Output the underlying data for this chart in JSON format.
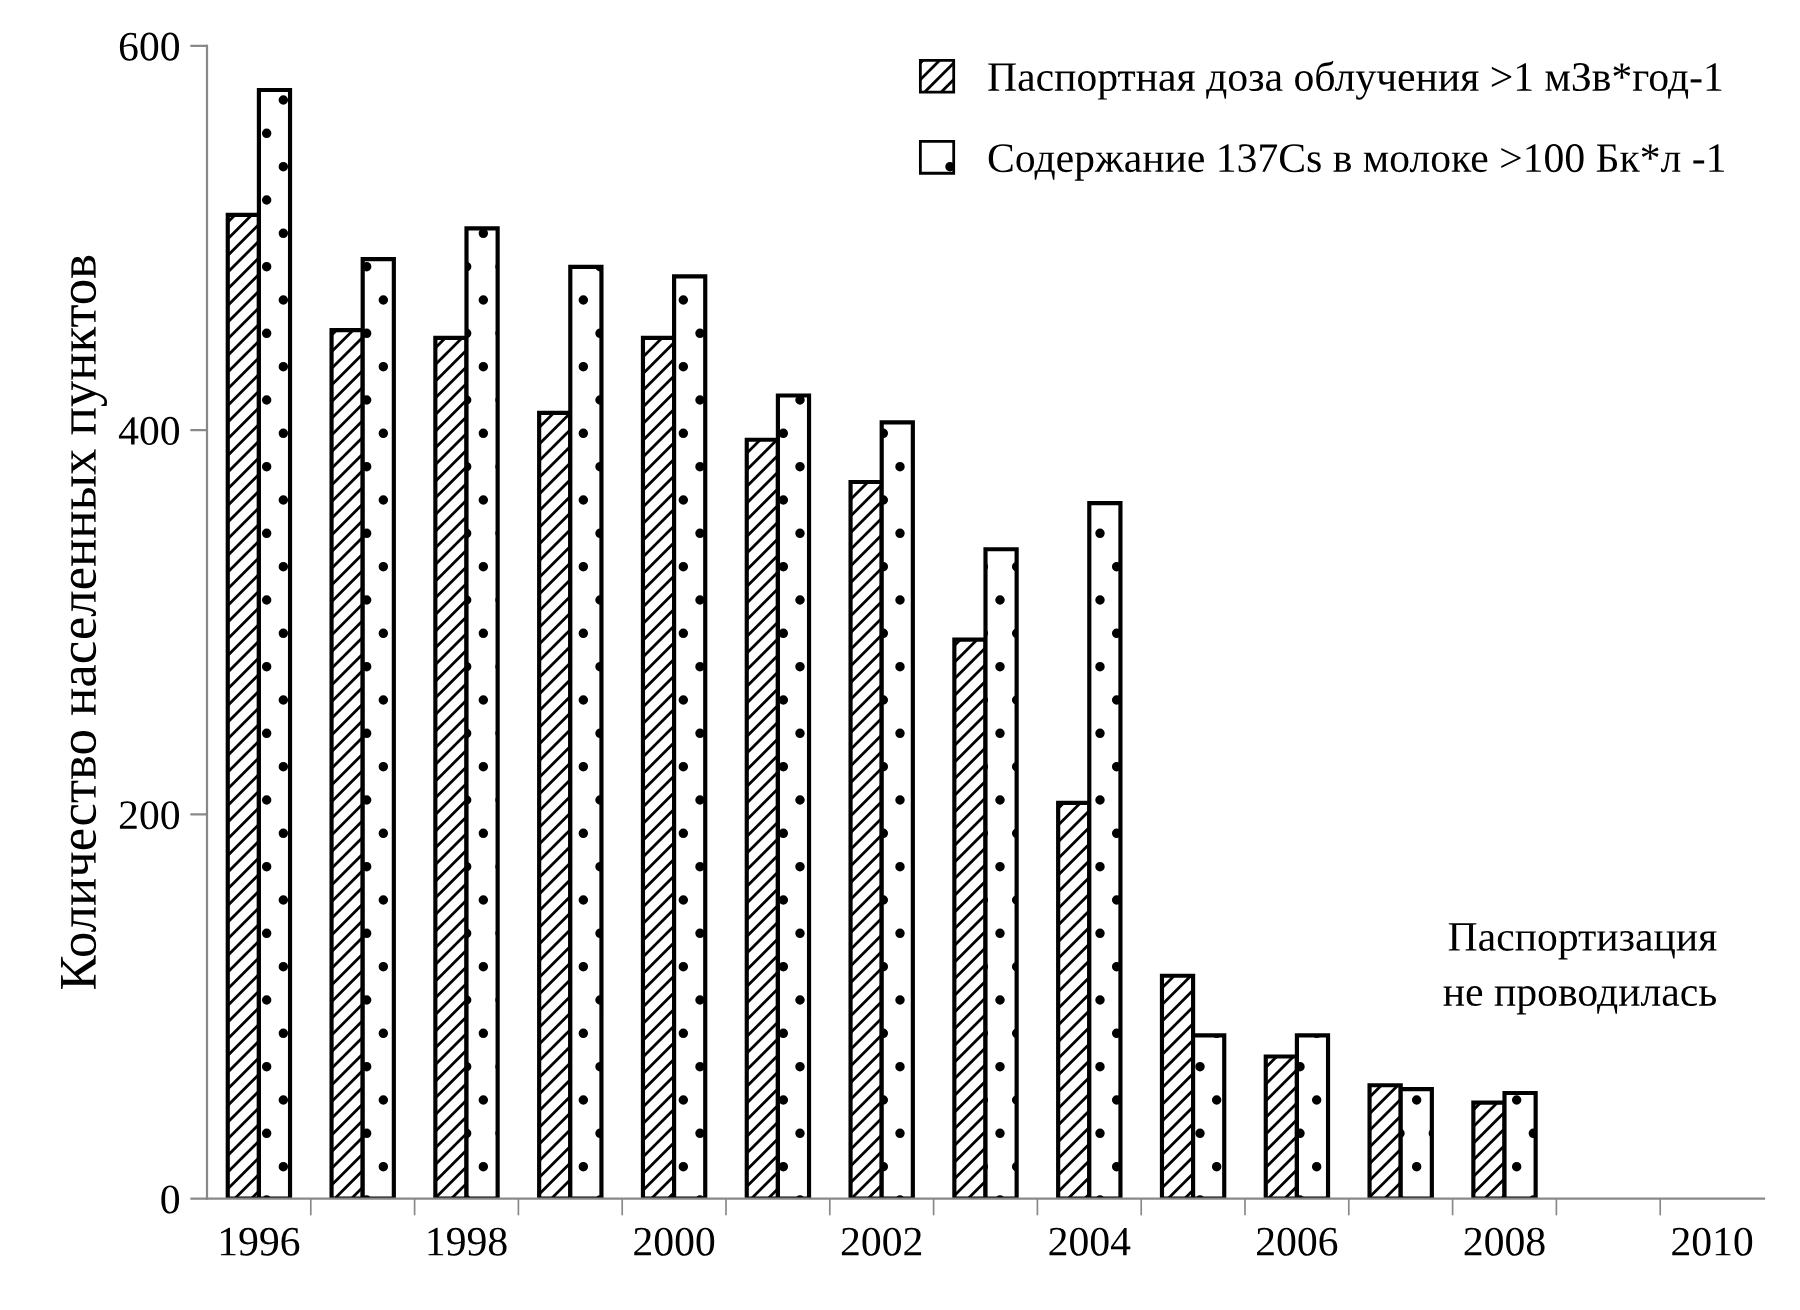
{
  "chart_data": {
    "type": "bar",
    "ylabel": "Количество населенных пунктов",
    "categories": [
      "1996",
      null,
      "1998",
      null,
      "2000",
      null,
      "2002",
      null,
      "2004",
      null,
      "2006",
      null,
      "2008",
      null,
      "2010"
    ],
    "series": [
      {
        "name": "Паспортная доза облучения >1 мЗв*год-1",
        "color": "#000000",
        "values": [
          512,
          452,
          448,
          409,
          448,
          395,
          373,
          291,
          206,
          116,
          74,
          59,
          50,
          null,
          null
        ]
      },
      {
        "name": "Содержание 137Cs в молоке >100 Бк*л -1",
        "color": "#000000",
        "values": [
          577,
          489,
          505,
          485,
          480,
          418,
          404,
          338,
          362,
          85,
          85,
          57,
          55,
          null,
          null
        ]
      }
    ],
    "ylim": [
      0,
      600
    ],
    "yticks": [
      0,
      200,
      400,
      600
    ],
    "legend": "top right",
    "annotations": [
      "Паспортизация\nне проводилась"
    ]
  }
}
